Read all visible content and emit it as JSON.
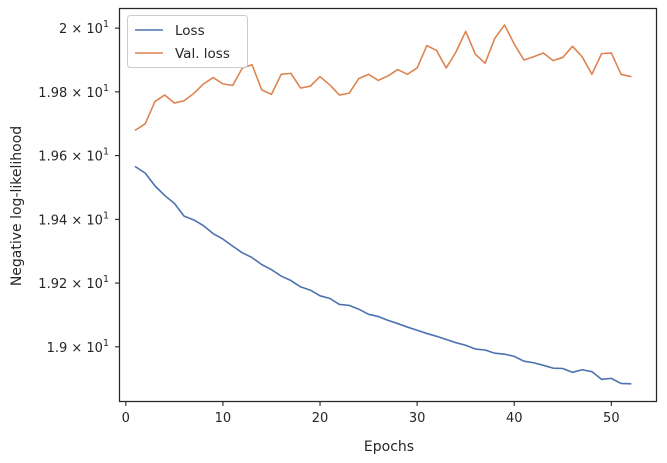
{
  "chart_data": {
    "type": "line",
    "xlabel": "Epochs",
    "ylabel": "Negative log-likelihood",
    "xlim": [
      -0.6,
      54.6
    ],
    "ylim": [
      18.83,
      20.06
    ],
    "x_ticks": [
      0,
      10,
      20,
      30,
      40,
      50
    ],
    "y_ticks": [
      {
        "value": 19.0,
        "base": "1.9",
        "exp": "1"
      },
      {
        "value": 19.2,
        "base": "1.92",
        "exp": "1"
      },
      {
        "value": 19.4,
        "base": "1.94",
        "exp": "1"
      },
      {
        "value": 19.6,
        "base": "1.96",
        "exp": "1"
      },
      {
        "value": 19.8,
        "base": "1.98",
        "exp": "1"
      },
      {
        "value": 20.0,
        "base": "2",
        "exp": "1"
      }
    ],
    "y_tick_times": "×",
    "y_tick_ten": "10",
    "grid": false,
    "legend_position": "top-left",
    "series": [
      {
        "name": "Loss",
        "color": "#4c72b0",
        "x": [
          1,
          2,
          3,
          4,
          5,
          6,
          7,
          8,
          9,
          10,
          11,
          12,
          13,
          14,
          15,
          16,
          17,
          18,
          19,
          20,
          21,
          22,
          23,
          24,
          25,
          26,
          27,
          28,
          29,
          30,
          31,
          32,
          33,
          34,
          35,
          36,
          37,
          38,
          39,
          40,
          41,
          42,
          43,
          44,
          45,
          46,
          47,
          48,
          49,
          50,
          51,
          52
        ],
        "values": [
          19.565,
          19.545,
          19.505,
          19.475,
          19.45,
          19.41,
          19.398,
          19.38,
          19.355,
          19.338,
          19.316,
          19.295,
          19.28,
          19.258,
          19.242,
          19.222,
          19.208,
          19.188,
          19.178,
          19.16,
          19.152,
          19.133,
          19.13,
          19.118,
          19.102,
          19.095,
          19.083,
          19.073,
          19.062,
          19.052,
          19.042,
          19.033,
          19.023,
          19.013,
          19.005,
          18.993,
          18.99,
          18.98,
          18.977,
          18.97,
          18.955,
          18.95,
          18.942,
          18.933,
          18.932,
          18.92,
          18.928,
          18.922,
          18.898,
          18.901,
          18.885,
          18.884
        ]
      },
      {
        "name": "Val. loss",
        "color": "#dd8452",
        "x": [
          1,
          2,
          3,
          4,
          5,
          6,
          7,
          8,
          9,
          10,
          11,
          12,
          13,
          14,
          15,
          16,
          17,
          18,
          19,
          20,
          21,
          22,
          23,
          24,
          25,
          26,
          27,
          28,
          29,
          30,
          31,
          32,
          33,
          34,
          35,
          36,
          37,
          38,
          39,
          40,
          41,
          42,
          43,
          44,
          45,
          46,
          47,
          48,
          49,
          50,
          51,
          52
        ],
        "values": [
          19.68,
          19.7,
          19.77,
          19.79,
          19.765,
          19.772,
          19.795,
          19.825,
          19.845,
          19.825,
          19.82,
          19.875,
          19.885,
          19.806,
          19.792,
          19.855,
          19.858,
          19.812,
          19.818,
          19.848,
          19.822,
          19.79,
          19.796,
          19.842,
          19.855,
          19.836,
          19.85,
          19.87,
          19.855,
          19.875,
          19.945,
          19.93,
          19.875,
          19.925,
          19.99,
          19.918,
          19.89,
          19.968,
          20.01,
          19.95,
          19.9,
          19.91,
          19.922,
          19.898,
          19.908,
          19.943,
          19.91,
          19.855,
          19.92,
          19.922,
          19.855,
          19.848
        ]
      }
    ]
  }
}
